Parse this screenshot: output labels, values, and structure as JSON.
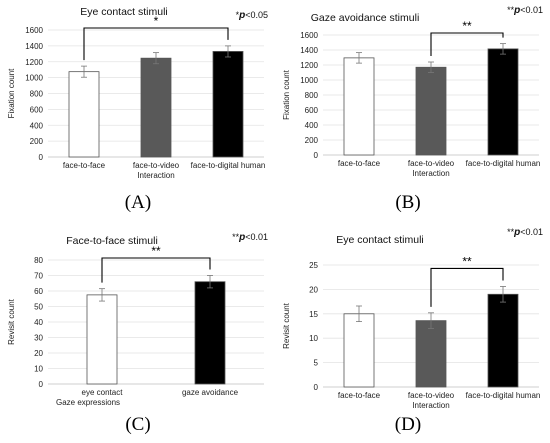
{
  "chart_data": [
    {
      "type": "bar",
      "title": "Eye contact stimuli",
      "note": "*p<0.05",
      "xlabel": "Interaction",
      "ylabel": "Fixation count",
      "categories": [
        "face-to-face",
        "face-to-video",
        "face-to-digital human"
      ],
      "values": [
        1075,
        1245,
        1330
      ],
      "errors": [
        70,
        70,
        70
      ],
      "colors": [
        "#ffffff",
        "#595959",
        "#000000"
      ],
      "ylim": [
        0,
        1600
      ],
      "yticks": [
        "0",
        "200",
        "400",
        "600",
        "800",
        "1000",
        "1200",
        "1400",
        "1600"
      ],
      "significance": {
        "from": 0,
        "to": 2,
        "label": "*"
      },
      "caption": "(A)"
    },
    {
      "type": "bar",
      "title": "Gaze avoidance stimuli",
      "note": "**p<0.01",
      "xlabel": "Interaction",
      "ylabel": "Fixation count",
      "categories": [
        "face-to-face",
        "face-to-video",
        "face-to-digital human"
      ],
      "values": [
        1295,
        1170,
        1415
      ],
      "errors": [
        70,
        70,
        70
      ],
      "colors": [
        "#ffffff",
        "#595959",
        "#000000"
      ],
      "ylim": [
        0,
        1600
      ],
      "yticks": [
        "0",
        "200",
        "400",
        "600",
        "800",
        "1000",
        "1200",
        "1400",
        "1600"
      ],
      "significance": {
        "from": 1,
        "to": 2,
        "label": "**"
      },
      "caption": "(B)"
    },
    {
      "type": "bar",
      "title": "Face-to-face stimuli",
      "note": "**p<0.01",
      "xlabel": "Gaze expressions",
      "ylabel": "Revisit count",
      "categories": [
        "eye contact",
        "gaze avoidance"
      ],
      "values": [
        57.5,
        66
      ],
      "errors": [
        4,
        4
      ],
      "colors": [
        "#ffffff",
        "#000000"
      ],
      "ylim": [
        0,
        80
      ],
      "yticks": [
        "0",
        "10",
        "20",
        "30",
        "40",
        "50",
        "60",
        "70",
        "80"
      ],
      "significance": {
        "from": 0,
        "to": 1,
        "label": "**"
      },
      "caption": "(C)"
    },
    {
      "type": "bar",
      "title": "Eye contact stimuli",
      "note": "**p<0.01",
      "xlabel": "Interaction",
      "ylabel": "Revisit count",
      "categories": [
        "face-to-face",
        "face-to-video",
        "face-to-digital human"
      ],
      "values": [
        15,
        13.6,
        19
      ],
      "errors": [
        1.6,
        1.6,
        1.6
      ],
      "colors": [
        "#ffffff",
        "#595959",
        "#000000"
      ],
      "ylim": [
        0,
        25
      ],
      "yticks": [
        "0",
        "5",
        "10",
        "15",
        "20",
        "25"
      ],
      "significance": {
        "from": 1,
        "to": 2,
        "label": "**"
      },
      "caption": "(D)"
    }
  ]
}
